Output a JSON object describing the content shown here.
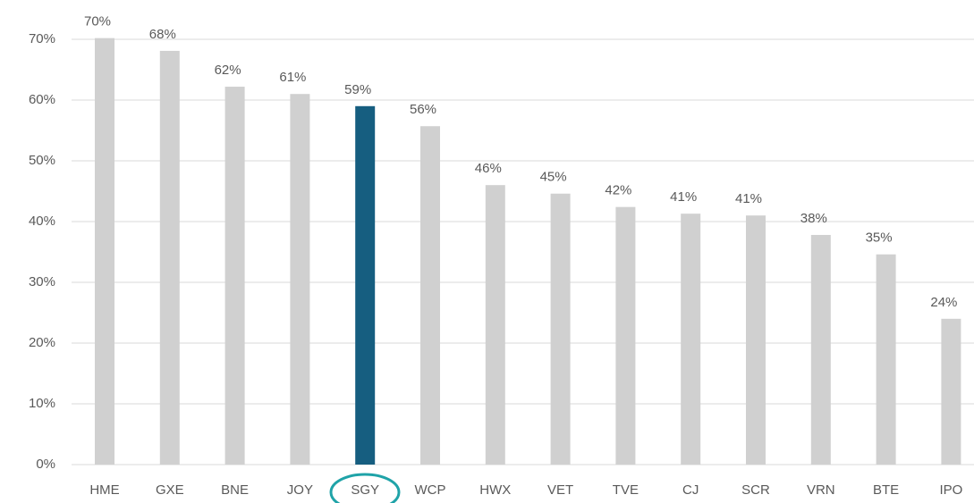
{
  "chart_data": {
    "type": "bar",
    "categories": [
      "HME",
      "GXE",
      "BNE",
      "JOY",
      "SGY",
      "WCP",
      "HWX",
      "VET",
      "TVE",
      "CJ",
      "SCR",
      "VRN",
      "BTE",
      "IPO"
    ],
    "values": [
      70.2,
      68.1,
      62.2,
      61.0,
      59.0,
      55.7,
      46.0,
      44.6,
      42.4,
      41.3,
      41.0,
      37.8,
      34.6,
      24.0
    ],
    "value_labels": [
      "70%",
      "68%",
      "62%",
      "61%",
      "59%",
      "56%",
      "46%",
      "45%",
      "42%",
      "41%",
      "41%",
      "38%",
      "35%",
      "24%"
    ],
    "colors": [
      "#d0d0d0",
      "#d0d0d0",
      "#d0d0d0",
      "#d0d0d0",
      "#165e80",
      "#d0d0d0",
      "#d0d0d0",
      "#d0d0d0",
      "#d0d0d0",
      "#d0d0d0",
      "#d0d0d0",
      "#d0d0d0",
      "#d0d0d0",
      "#d0d0d0"
    ],
    "ylim": [
      0,
      75
    ],
    "yticks": [
      {
        "value": 0,
        "label": "0%"
      },
      {
        "value": 10,
        "label": "10%"
      },
      {
        "value": 20,
        "label": "20%"
      },
      {
        "value": 30,
        "label": "30%"
      },
      {
        "value": 40,
        "label": "40%"
      },
      {
        "value": 50,
        "label": "50%"
      },
      {
        "value": 60,
        "label": "60%"
      },
      {
        "value": 70,
        "label": "70%"
      }
    ],
    "grid": true
  }
}
